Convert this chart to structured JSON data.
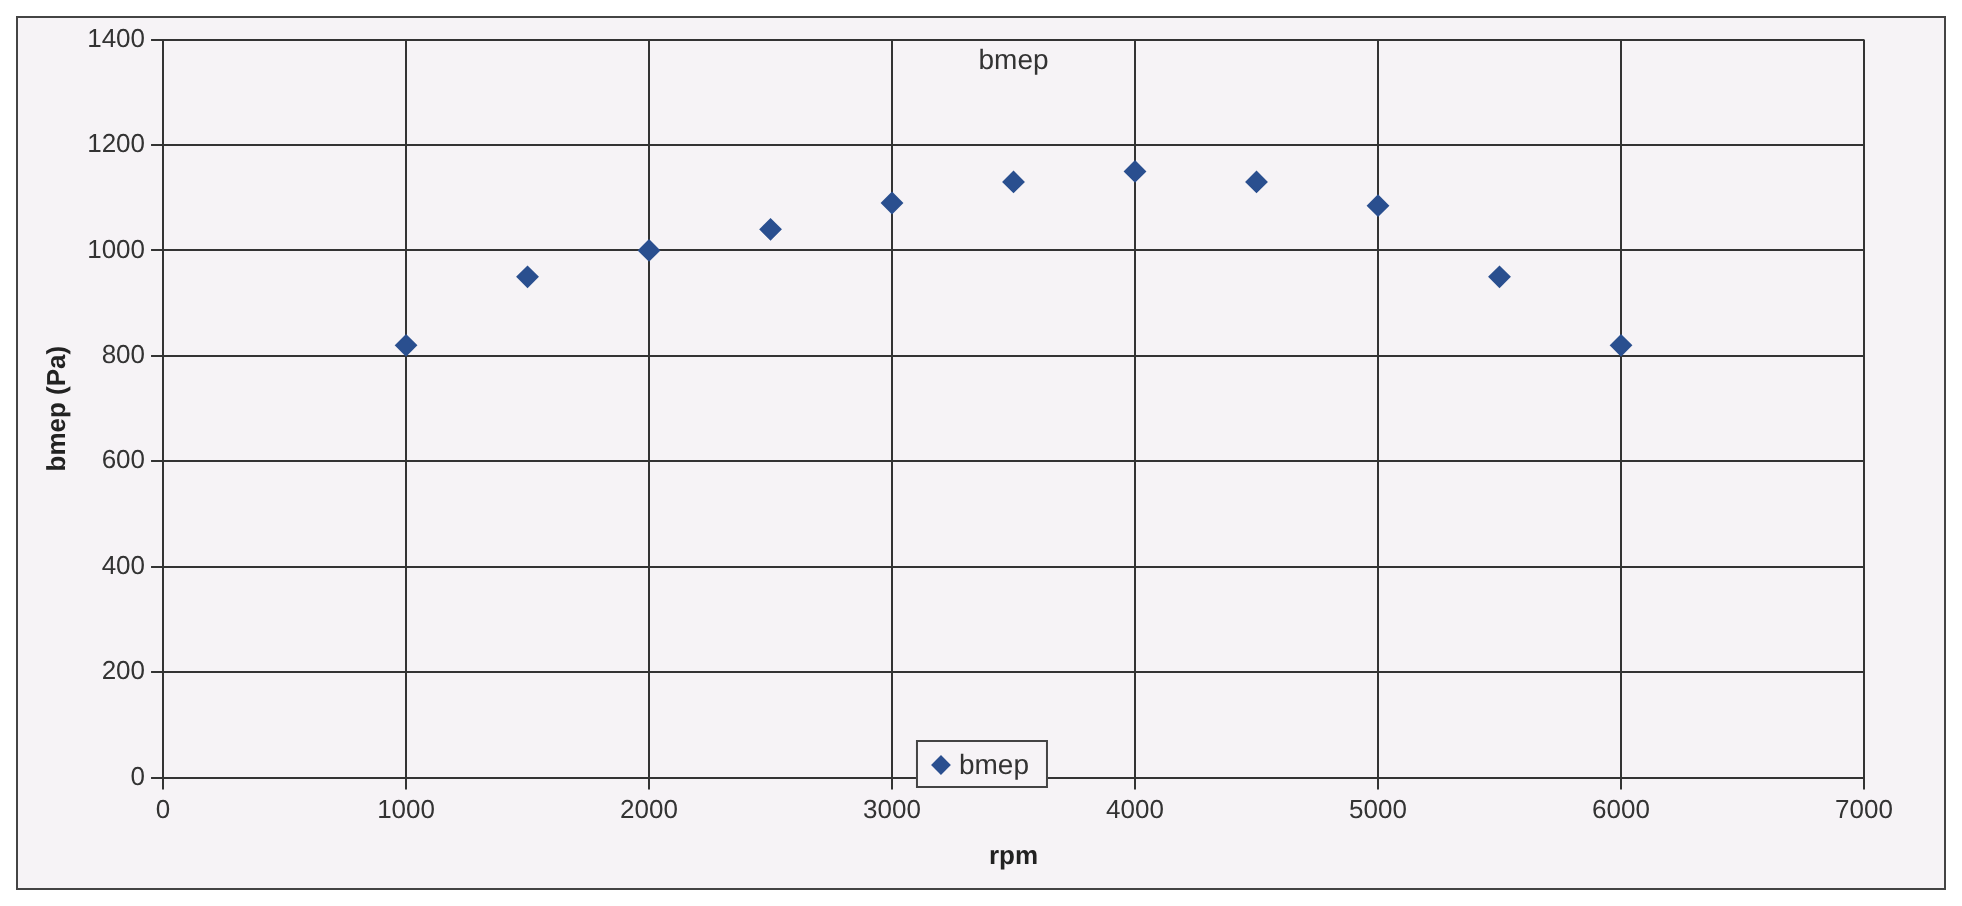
{
  "chart_data": {
    "type": "scatter",
    "title": "bmep",
    "xlabel": "rpm",
    "ylabel": "bmep (Pa)",
    "x": [
      1000,
      1500,
      2000,
      2500,
      3000,
      3500,
      4000,
      4500,
      5000,
      5500,
      6000
    ],
    "series": [
      {
        "name": "bmep",
        "color": "#2a4f8f",
        "values": [
          820,
          950,
          1000,
          1040,
          1090,
          1130,
          1150,
          1130,
          1085,
          950,
          820
        ]
      }
    ],
    "xlim": [
      0,
      7000
    ],
    "xticks": [
      0,
      1000,
      2000,
      3000,
      4000,
      5000,
      6000,
      7000
    ],
    "ylim": [
      0,
      1400
    ],
    "yticks": [
      0,
      200,
      400,
      600,
      800,
      1000,
      1200,
      1400
    ],
    "grid": true,
    "legend": "bottom",
    "marker": "diamond"
  }
}
